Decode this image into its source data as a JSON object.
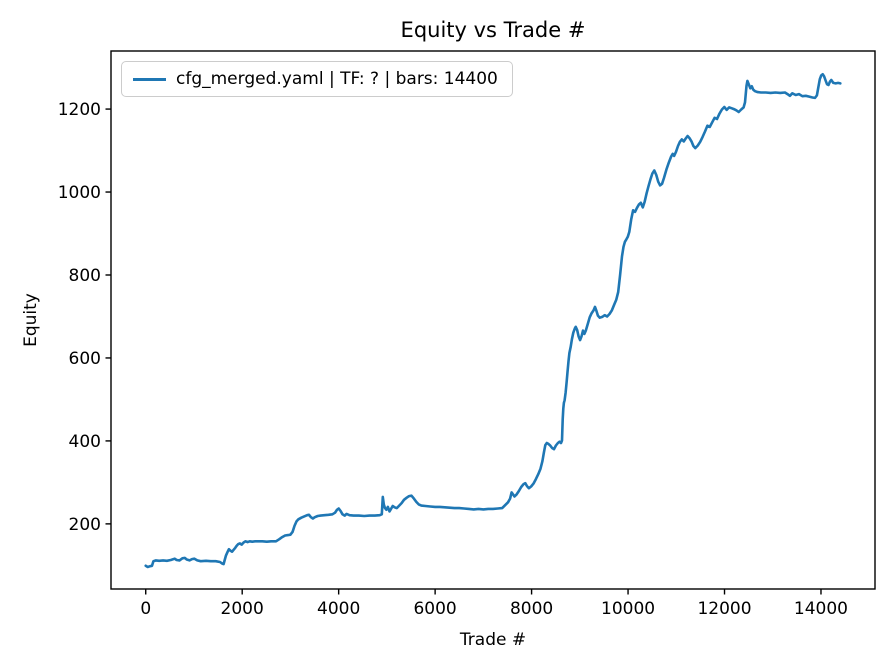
{
  "figure": {
    "title": "Equity vs Trade #",
    "x_label": "Trade #",
    "y_label": "Equity"
  },
  "legend": {
    "entries": [
      {
        "label": "cfg_merged.yaml | TF: ? | bars: 14400",
        "color": "#1f77b4"
      }
    ],
    "position": "upper left"
  },
  "chart_data": {
    "type": "line",
    "title": "Equity vs Trade #",
    "xlabel": "Trade #",
    "ylabel": "Equity",
    "grid": false,
    "legend_position": "upper left",
    "line_color": "#1f77b4",
    "axis_color": "#000000",
    "xlim": [
      -720,
      15120
    ],
    "ylim": [
      43,
      1340
    ],
    "x_ticks": [
      0,
      2000,
      4000,
      6000,
      8000,
      10000,
      12000,
      14000
    ],
    "y_ticks": [
      200,
      400,
      600,
      800,
      1000,
      1200
    ],
    "series": [
      {
        "name": "cfg_merged.yaml | TF: ? | bars: 14400",
        "points": [
          [
            0,
            99
          ],
          [
            40,
            96
          ],
          [
            90,
            98
          ],
          [
            130,
            99
          ],
          [
            160,
            110
          ],
          [
            210,
            112
          ],
          [
            280,
            111
          ],
          [
            360,
            112
          ],
          [
            440,
            111
          ],
          [
            520,
            113
          ],
          [
            600,
            116
          ],
          [
            640,
            113
          ],
          [
            700,
            112
          ],
          [
            760,
            117
          ],
          [
            810,
            118
          ],
          [
            850,
            114
          ],
          [
            910,
            112
          ],
          [
            960,
            115
          ],
          [
            1010,
            116
          ],
          [
            1070,
            112
          ],
          [
            1140,
            110
          ],
          [
            1250,
            111
          ],
          [
            1350,
            110
          ],
          [
            1450,
            110
          ],
          [
            1540,
            108
          ],
          [
            1590,
            104
          ],
          [
            1615,
            103
          ],
          [
            1635,
            112
          ],
          [
            1665,
            124
          ],
          [
            1695,
            132
          ],
          [
            1725,
            139
          ],
          [
            1760,
            135
          ],
          [
            1790,
            133
          ],
          [
            1825,
            138
          ],
          [
            1855,
            142
          ],
          [
            1885,
            147
          ],
          [
            1915,
            151
          ],
          [
            1950,
            153
          ],
          [
            1990,
            150
          ],
          [
            2030,
            155
          ],
          [
            2070,
            158
          ],
          [
            2115,
            156
          ],
          [
            2155,
            158
          ],
          [
            2210,
            157
          ],
          [
            2270,
            158
          ],
          [
            2340,
            158
          ],
          [
            2420,
            158
          ],
          [
            2510,
            157
          ],
          [
            2600,
            158
          ],
          [
            2700,
            158
          ],
          [
            2770,
            163
          ],
          [
            2830,
            168
          ],
          [
            2890,
            172
          ],
          [
            2950,
            173
          ],
          [
            3000,
            174
          ],
          [
            3045,
            181
          ],
          [
            3085,
            195
          ],
          [
            3125,
            206
          ],
          [
            3165,
            211
          ],
          [
            3225,
            215
          ],
          [
            3285,
            218
          ],
          [
            3345,
            221
          ],
          [
            3385,
            222
          ],
          [
            3425,
            216
          ],
          [
            3465,
            213
          ],
          [
            3505,
            216
          ],
          [
            3565,
            219
          ],
          [
            3625,
            220
          ],
          [
            3705,
            221
          ],
          [
            3790,
            222
          ],
          [
            3870,
            223
          ],
          [
            3925,
            227
          ],
          [
            3965,
            234
          ],
          [
            4000,
            237
          ],
          [
            4040,
            231
          ],
          [
            4080,
            223
          ],
          [
            4125,
            220
          ],
          [
            4165,
            224
          ],
          [
            4225,
            221
          ],
          [
            4310,
            220
          ],
          [
            4420,
            220
          ],
          [
            4530,
            219
          ],
          [
            4640,
            220
          ],
          [
            4750,
            220
          ],
          [
            4850,
            221
          ],
          [
            4895,
            223
          ],
          [
            4915,
            265
          ],
          [
            4935,
            247
          ],
          [
            4960,
            238
          ],
          [
            4990,
            234
          ],
          [
            5020,
            241
          ],
          [
            5055,
            230
          ],
          [
            5085,
            236
          ],
          [
            5120,
            243
          ],
          [
            5160,
            240
          ],
          [
            5205,
            238
          ],
          [
            5255,
            244
          ],
          [
            5305,
            250
          ],
          [
            5355,
            258
          ],
          [
            5410,
            263
          ],
          [
            5460,
            267
          ],
          [
            5510,
            268
          ],
          [
            5560,
            261
          ],
          [
            5610,
            253
          ],
          [
            5660,
            247
          ],
          [
            5715,
            244
          ],
          [
            5800,
            243
          ],
          [
            5900,
            242
          ],
          [
            6000,
            241
          ],
          [
            6100,
            241
          ],
          [
            6200,
            240
          ],
          [
            6300,
            239
          ],
          [
            6400,
            238
          ],
          [
            6500,
            238
          ],
          [
            6600,
            237
          ],
          [
            6700,
            236
          ],
          [
            6800,
            235
          ],
          [
            6900,
            236
          ],
          [
            7000,
            235
          ],
          [
            7100,
            236
          ],
          [
            7200,
            236
          ],
          [
            7300,
            237
          ],
          [
            7390,
            238
          ],
          [
            7450,
            245
          ],
          [
            7510,
            252
          ],
          [
            7555,
            261
          ],
          [
            7585,
            276
          ],
          [
            7615,
            271
          ],
          [
            7645,
            266
          ],
          [
            7690,
            271
          ],
          [
            7735,
            279
          ],
          [
            7785,
            289
          ],
          [
            7835,
            296
          ],
          [
            7870,
            298
          ],
          [
            7905,
            291
          ],
          [
            7945,
            286
          ],
          [
            7990,
            290
          ],
          [
            8040,
            297
          ],
          [
            8090,
            308
          ],
          [
            8140,
            320
          ],
          [
            8185,
            333
          ],
          [
            8225,
            351
          ],
          [
            8255,
            372
          ],
          [
            8285,
            390
          ],
          [
            8315,
            395
          ],
          [
            8345,
            393
          ],
          [
            8385,
            389
          ],
          [
            8425,
            383
          ],
          [
            8465,
            380
          ],
          [
            8505,
            389
          ],
          [
            8545,
            395
          ],
          [
            8580,
            398
          ],
          [
            8610,
            395
          ],
          [
            8630,
            401
          ],
          [
            8645,
            452
          ],
          [
            8658,
            478
          ],
          [
            8670,
            492
          ],
          [
            8685,
            498
          ],
          [
            8705,
            516
          ],
          [
            8725,
            541
          ],
          [
            8745,
            566
          ],
          [
            8765,
            592
          ],
          [
            8785,
            612
          ],
          [
            8810,
            627
          ],
          [
            8835,
            645
          ],
          [
            8865,
            661
          ],
          [
            8895,
            671
          ],
          [
            8915,
            675
          ],
          [
            8945,
            667
          ],
          [
            8975,
            652
          ],
          [
            9005,
            643
          ],
          [
            9035,
            652
          ],
          [
            9065,
            666
          ],
          [
            9095,
            658
          ],
          [
            9125,
            666
          ],
          [
            9165,
            682
          ],
          [
            9205,
            698
          ],
          [
            9245,
            708
          ],
          [
            9285,
            715
          ],
          [
            9315,
            723
          ],
          [
            9345,
            713
          ],
          [
            9375,
            702
          ],
          [
            9415,
            697
          ],
          [
            9465,
            699
          ],
          [
            9515,
            703
          ],
          [
            9565,
            700
          ],
          [
            9615,
            706
          ],
          [
            9665,
            715
          ],
          [
            9715,
            729
          ],
          [
            9755,
            740
          ],
          [
            9795,
            759
          ],
          [
            9835,
            800
          ],
          [
            9875,
            845
          ],
          [
            9905,
            868
          ],
          [
            9935,
            880
          ],
          [
            9965,
            886
          ],
          [
            9995,
            892
          ],
          [
            10025,
            904
          ],
          [
            10065,
            934
          ],
          [
            10105,
            956
          ],
          [
            10145,
            952
          ],
          [
            10185,
            962
          ],
          [
            10225,
            970
          ],
          [
            10265,
            974
          ],
          [
            10305,
            963
          ],
          [
            10345,
            977
          ],
          [
            10385,
            997
          ],
          [
            10425,
            1014
          ],
          [
            10465,
            1031
          ],
          [
            10505,
            1045
          ],
          [
            10545,
            1052
          ],
          [
            10585,
            1041
          ],
          [
            10625,
            1025
          ],
          [
            10665,
            1016
          ],
          [
            10705,
            1020
          ],
          [
            10745,
            1034
          ],
          [
            10795,
            1054
          ],
          [
            10845,
            1071
          ],
          [
            10895,
            1086
          ],
          [
            10925,
            1092
          ],
          [
            10955,
            1087
          ],
          [
            10995,
            1097
          ],
          [
            11035,
            1111
          ],
          [
            11075,
            1121
          ],
          [
            11115,
            1127
          ],
          [
            11155,
            1122
          ],
          [
            11195,
            1129
          ],
          [
            11235,
            1135
          ],
          [
            11275,
            1130
          ],
          [
            11315,
            1122
          ],
          [
            11355,
            1111
          ],
          [
            11395,
            1106
          ],
          [
            11445,
            1112
          ],
          [
            11495,
            1121
          ],
          [
            11545,
            1133
          ],
          [
            11595,
            1146
          ],
          [
            11645,
            1160
          ],
          [
            11695,
            1157
          ],
          [
            11745,
            1168
          ],
          [
            11795,
            1179
          ],
          [
            11845,
            1176
          ],
          [
            11895,
            1189
          ],
          [
            11945,
            1199
          ],
          [
            11995,
            1205
          ],
          [
            12045,
            1198
          ],
          [
            12095,
            1204
          ],
          [
            12145,
            1202
          ],
          [
            12195,
            1200
          ],
          [
            12245,
            1197
          ],
          [
            12295,
            1193
          ],
          [
            12345,
            1199
          ],
          [
            12395,
            1204
          ],
          [
            12425,
            1216
          ],
          [
            12455,
            1256
          ],
          [
            12475,
            1268
          ],
          [
            12505,
            1259
          ],
          [
            12535,
            1250
          ],
          [
            12565,
            1255
          ],
          [
            12595,
            1247
          ],
          [
            12635,
            1243
          ],
          [
            12685,
            1241
          ],
          [
            12755,
            1240
          ],
          [
            12855,
            1240
          ],
          [
            12955,
            1239
          ],
          [
            13055,
            1240
          ],
          [
            13155,
            1239
          ],
          [
            13255,
            1240
          ],
          [
            13305,
            1236
          ],
          [
            13355,
            1232
          ],
          [
            13405,
            1238
          ],
          [
            13475,
            1234
          ],
          [
            13545,
            1236
          ],
          [
            13615,
            1231
          ],
          [
            13685,
            1232
          ],
          [
            13755,
            1230
          ],
          [
            13825,
            1228
          ],
          [
            13875,
            1227
          ],
          [
            13915,
            1233
          ],
          [
            13945,
            1252
          ],
          [
            13975,
            1272
          ],
          [
            14005,
            1281
          ],
          [
            14035,
            1284
          ],
          [
            14065,
            1279
          ],
          [
            14095,
            1269
          ],
          [
            14125,
            1260
          ],
          [
            14155,
            1258
          ],
          [
            14185,
            1266
          ],
          [
            14215,
            1270
          ],
          [
            14255,
            1263
          ],
          [
            14305,
            1262
          ],
          [
            14355,
            1263
          ],
          [
            14400,
            1262
          ]
        ]
      }
    ]
  }
}
